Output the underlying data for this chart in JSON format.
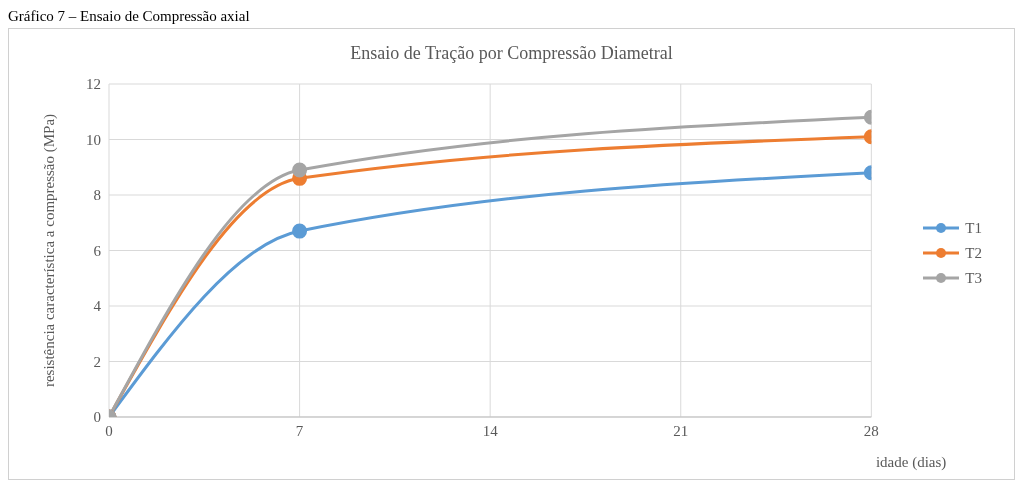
{
  "chart_data": {
    "type": "line",
    "title": "Ensaio de Tração por Compressão Diametral",
    "xlabel": "idade (dias)",
    "ylabel": "resistência característica a compressão (MPa)",
    "annotations": [
      "Gráfico 7 – Ensaio de Compressão axial"
    ],
    "x": [
      0,
      7,
      28
    ],
    "series": [
      {
        "name": "T1",
        "color": "#5b9bd5",
        "values": [
          0,
          6.7,
          8.8
        ]
      },
      {
        "name": "T2",
        "color": "#ed7d31",
        "values": [
          0,
          8.6,
          10.1
        ]
      },
      {
        "name": "T3",
        "color": "#a5a5a5",
        "values": [
          0,
          8.9,
          10.8
        ]
      }
    ],
    "xlim": [
      0,
      28
    ],
    "xticks": [
      0,
      7,
      14,
      21,
      28
    ],
    "ylim": [
      0,
      12
    ],
    "yticks": [
      0,
      2,
      4,
      6,
      8,
      10,
      12
    ],
    "grid": true,
    "legend": "right",
    "marker": "circle",
    "line_style": "solid"
  }
}
